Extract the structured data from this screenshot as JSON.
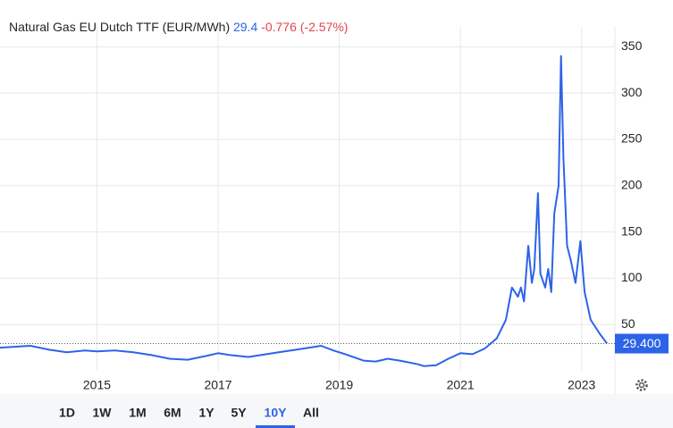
{
  "chart_data": {
    "type": "line",
    "title": "Natural Gas EU Dutch TTF (EUR/MWh)",
    "price": 29.4,
    "change": "-0.776",
    "change_percent": "(-2.57%)",
    "last_value_label": "29.400",
    "color": "#2d63e8",
    "x": [
      2013.4,
      2013.9,
      2014.2,
      2014.5,
      2014.8,
      2015.0,
      2015.3,
      2015.6,
      2015.9,
      2016.2,
      2016.5,
      2016.8,
      2017.0,
      2017.2,
      2017.5,
      2017.8,
      2018.0,
      2018.3,
      2018.7,
      2018.9,
      2019.1,
      2019.4,
      2019.6,
      2019.8,
      2020.0,
      2020.3,
      2020.4,
      2020.6,
      2020.8,
      2021.0,
      2021.2,
      2021.4,
      2021.6,
      2021.75,
      2021.85,
      2021.95,
      2022.0,
      2022.05,
      2022.12,
      2022.18,
      2022.22,
      2022.28,
      2022.32,
      2022.4,
      2022.45,
      2022.5,
      2022.55,
      2022.62,
      2022.66,
      2022.7,
      2022.76,
      2022.82,
      2022.9,
      2022.98,
      2023.05,
      2023.15,
      2023.3,
      2023.42
    ],
    "values": [
      25,
      27,
      23,
      20,
      22,
      21,
      22,
      20,
      17,
      13,
      12,
      16,
      19,
      17,
      15,
      18,
      20,
      23,
      27,
      22,
      18,
      11,
      10,
      13,
      11,
      7,
      5,
      6,
      13,
      19,
      18,
      24,
      35,
      55,
      90,
      80,
      90,
      75,
      135,
      95,
      110,
      192,
      105,
      90,
      110,
      85,
      170,
      200,
      340,
      230,
      135,
      120,
      95,
      140,
      85,
      55,
      40,
      29.4
    ],
    "xlim": [
      2013.4,
      2023.55
    ],
    "ylim": [
      0,
      360
    ],
    "xticks": [
      2015,
      2017,
      2019,
      2021,
      2023
    ],
    "yticks": [
      50,
      100,
      150,
      200,
      250,
      300,
      350
    ],
    "grid": true,
    "ranges": [
      "1D",
      "1W",
      "1M",
      "6M",
      "1Y",
      "5Y",
      "10Y",
      "All"
    ],
    "selected_range": "10Y"
  }
}
